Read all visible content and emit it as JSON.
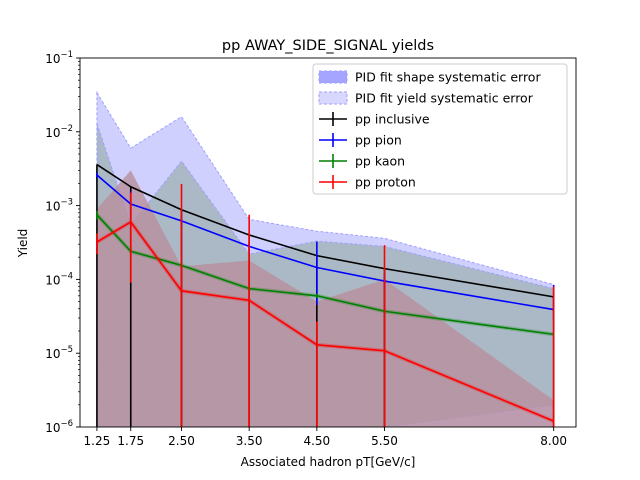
{
  "chart_data": {
    "type": "line",
    "title": "pp AWAY_SIDE_SIGNAL yields",
    "xlabel": "Associated hadron pT[GeV/c]",
    "ylabel": "Yield",
    "yscale": "log",
    "ylim": [
      1e-06,
      0.1
    ],
    "xlim": [
      1.0,
      8.33
    ],
    "x": [
      1.25,
      1.75,
      2.5,
      3.5,
      4.5,
      5.5,
      8.0
    ],
    "x_tick_labels": [
      "1.25",
      "1.75",
      "2.50",
      "3.50",
      "4.50",
      "5.50",
      "8.00"
    ],
    "y_ticks": [
      1e-06,
      1e-05,
      0.0001,
      0.001,
      0.01,
      0.1
    ],
    "y_tick_labels": [
      {
        "base": "10",
        "exp": "−6"
      },
      {
        "base": "10",
        "exp": "−5"
      },
      {
        "base": "10",
        "exp": "−4"
      },
      {
        "base": "10",
        "exp": "−3"
      },
      {
        "base": "10",
        "exp": "−2"
      },
      {
        "base": "10",
        "exp": "−1"
      }
    ],
    "legend_position": "top-right",
    "legend": {
      "shape_sys": "PID fit shape systematic error",
      "yield_sys": "PID fit yield systematic error"
    },
    "bands": {
      "shape_sys_color": "#7f7fff",
      "yield_sys_color": "#c8c8ff",
      "inclusive_upper": [
        0.034,
        0.006,
        0.016,
        0.00065,
        0.00045,
        0.00036,
        8.5e-05
      ],
      "pion_band": {
        "upper": [
          0.013,
          0.00055,
          0.004,
          0.00022,
          0.00033,
          0.00028,
          7.5e-05
        ],
        "lower": [
          1e-06,
          1e-06,
          1e-06,
          1e-06,
          1e-06,
          1e-06,
          2e-06
        ]
      },
      "proton_band": {
        "upper": [
          0.0009,
          0.003,
          0.00015,
          0.00018,
          5e-05,
          0.0001,
          2.3e-06
        ],
        "lower": [
          1e-06,
          1e-06,
          1e-06,
          1e-06,
          1e-06,
          1e-06,
          1e-06
        ]
      }
    },
    "series": [
      {
        "name": "pp inclusive",
        "color": "#000000",
        "values": [
          0.0036,
          0.0018,
          0.00088,
          0.0004,
          0.00021,
          0.00014,
          5.8e-05
        ],
        "err_low": [
          0.0036,
          0.0018,
          0.00088,
          0.0004,
          0.00021,
          0.00014,
          5.8e-05
        ],
        "err_high": [
          0,
          0,
          0,
          0,
          0,
          0,
          0
        ]
      },
      {
        "name": "pp pion",
        "color": "#0000ff",
        "values": [
          0.0026,
          0.00105,
          0.00062,
          0.00028,
          0.000145,
          9.5e-05,
          3.9e-05
        ],
        "err_low": [
          0.0002,
          0.0004,
          0.0001,
          4e-05,
          0.0001,
          2e-05,
          1e-05
        ],
        "err_high": [
          0.0002,
          0.0005,
          0.0001,
          4e-05,
          0.00018,
          2e-05,
          4.5e-05
        ]
      },
      {
        "name": "pp kaon",
        "color": "#008000",
        "values": [
          0.00075,
          0.00024,
          0.000155,
          7.5e-05,
          6e-05,
          3.7e-05,
          1.8e-05
        ],
        "err_low": [
          0.0001,
          2e-05,
          1e-05,
          5e-06,
          4e-06,
          2e-06,
          1e-06
        ],
        "err_high": [
          0.0001,
          2e-05,
          1e-05,
          5e-06,
          4e-06,
          2e-06,
          1e-06
        ]
      },
      {
        "name": "pp proton",
        "color": "#ff0000",
        "values": [
          0.00032,
          0.0006,
          7e-05,
          5.2e-05,
          1.3e-05,
          1.08e-05,
          1.2e-06
        ],
        "err_low": [
          0.0001,
          0.00051,
          6.9e-05,
          5.1e-05,
          1.25e-05,
          1.05e-05,
          1.1e-06
        ],
        "err_high": [
          0.0001,
          0.0009,
          0.0019,
          0.0007,
          1.4e-05,
          0.00028,
          7.9e-05
        ]
      }
    ]
  }
}
